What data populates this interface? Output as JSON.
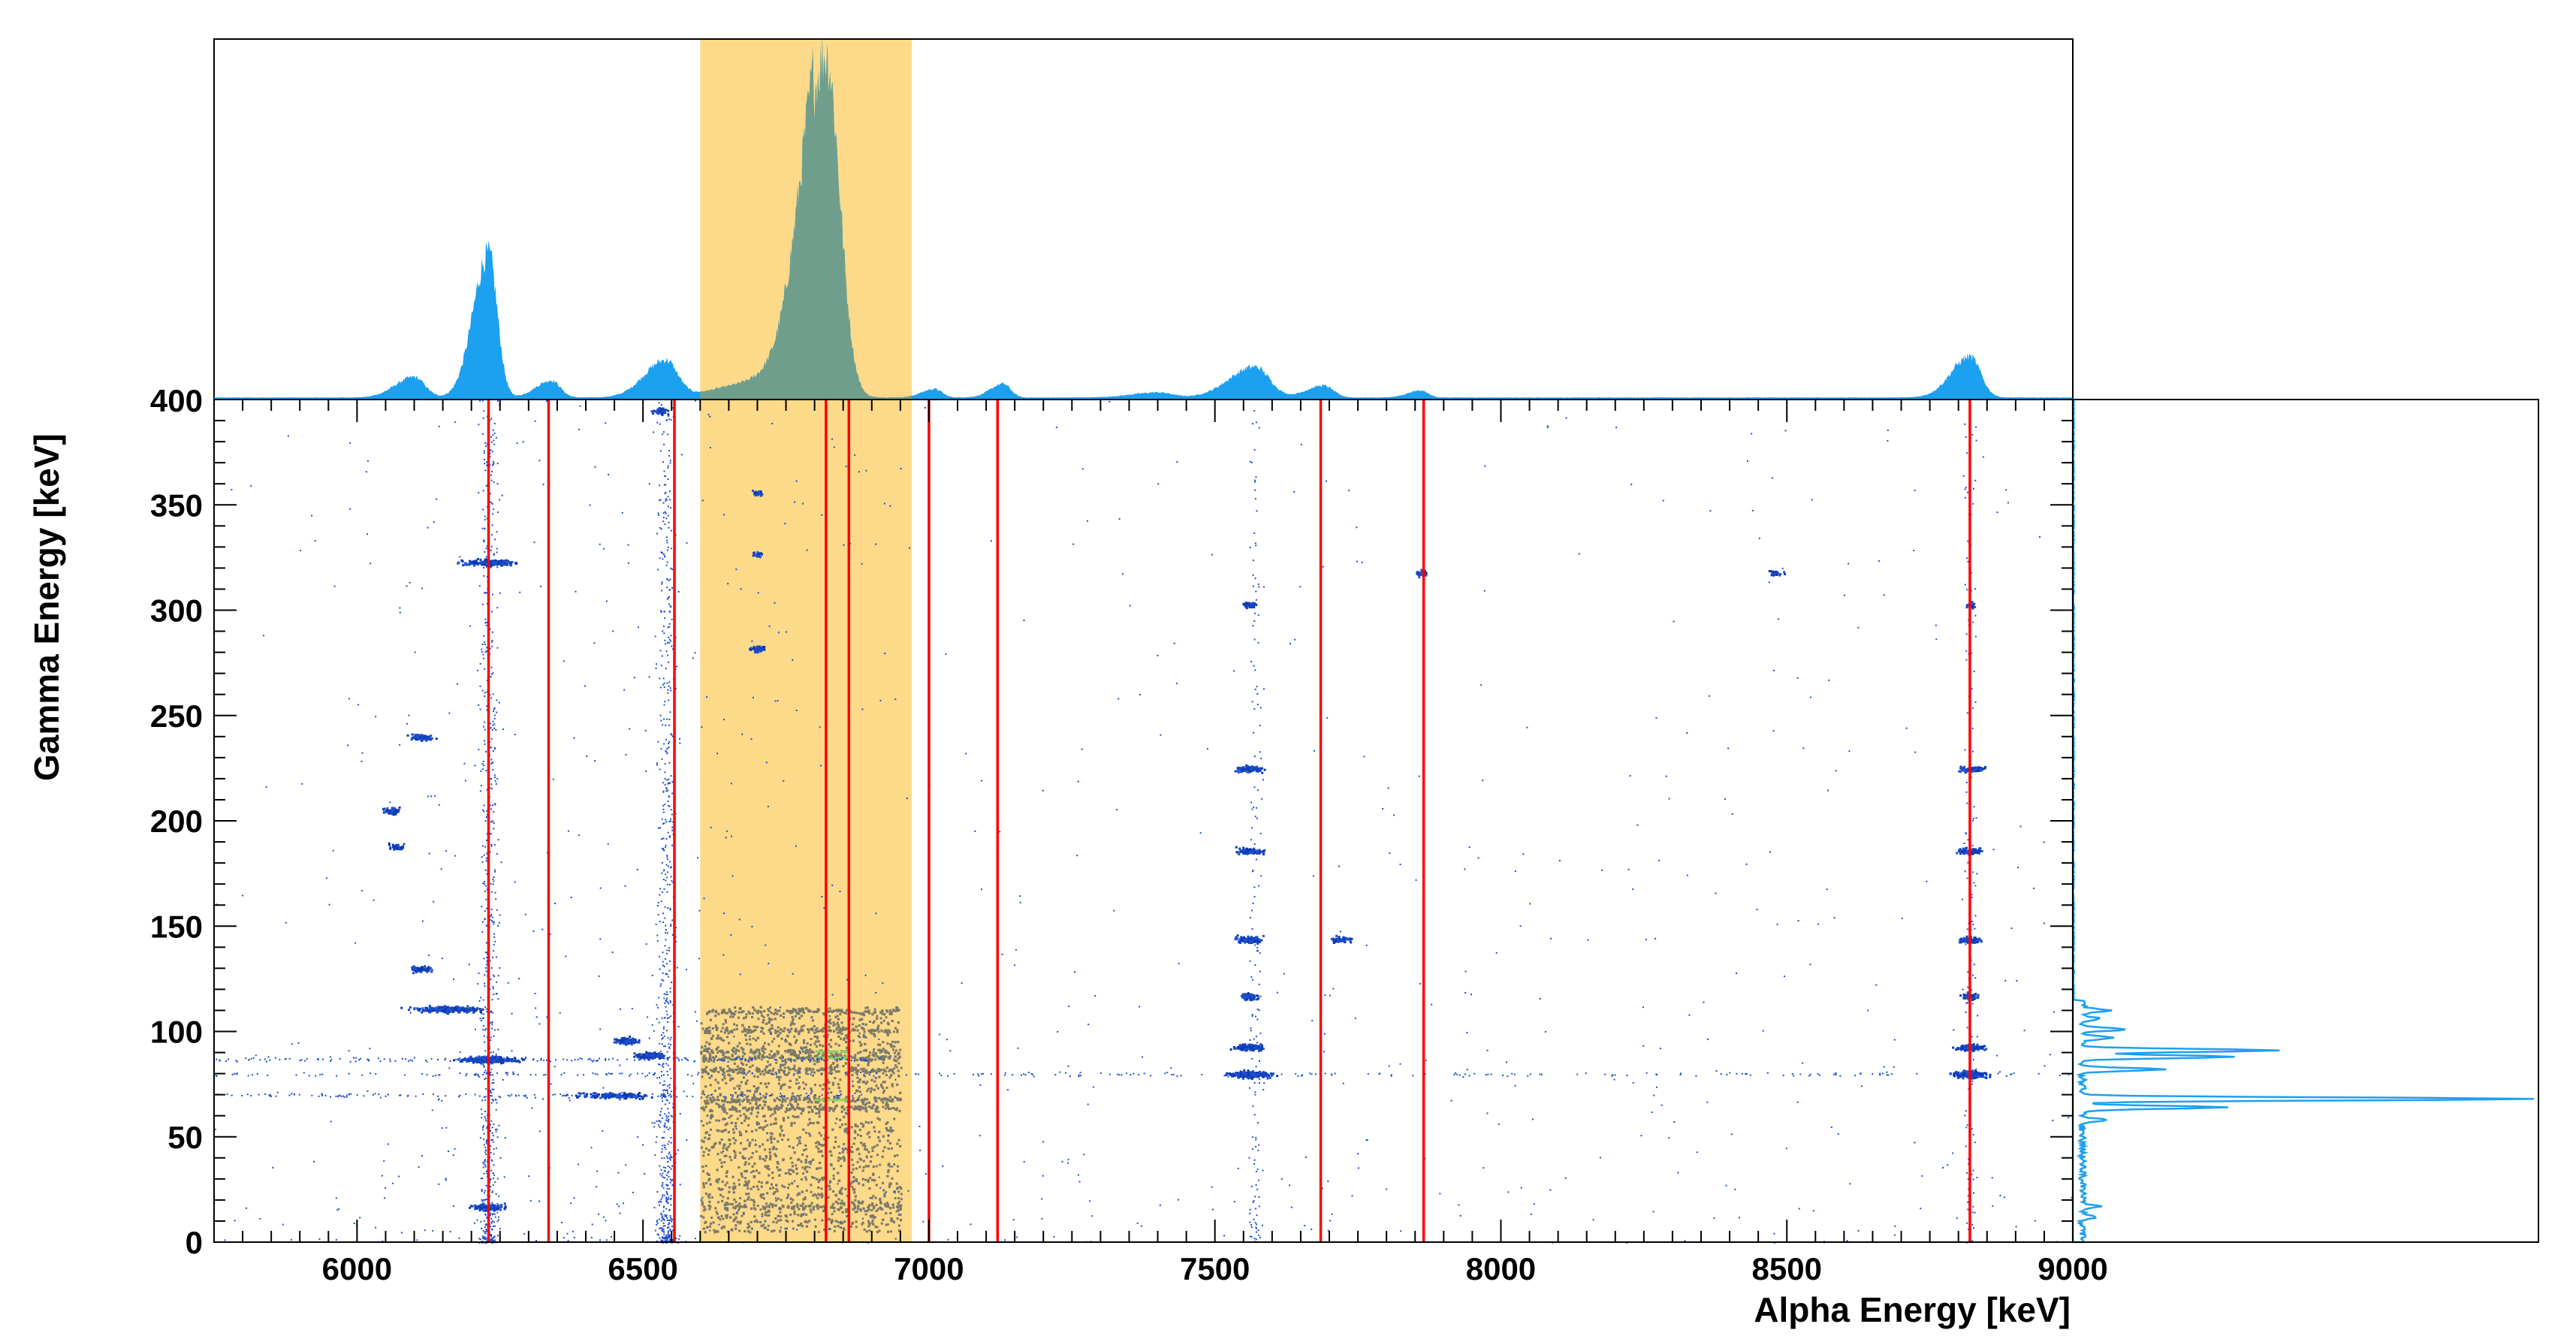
{
  "chart_data": {
    "type": "heatmap",
    "title": "",
    "xlabel": "Alpha Energy [keV]",
    "ylabel": "Gamma Energy [keV]",
    "xlim": [
      5750,
      9000
    ],
    "ylim": [
      0,
      400
    ],
    "x_ticks": [
      6000,
      6500,
      7000,
      7500,
      8000,
      8500,
      9000
    ],
    "y_ticks": [
      0,
      50,
      100,
      150,
      200,
      250,
      300,
      350,
      400
    ],
    "projection_top": {
      "type": "histogram",
      "axis": "alpha",
      "color": "#1ca0f0",
      "label_shown": "400",
      "peaks": [
        {
          "x": 6100,
          "rel": 0.06
        },
        {
          "x": 6230,
          "rel": 0.42
        },
        {
          "x": 6340,
          "rel": 0.05
        },
        {
          "x": 6540,
          "rel": 0.11
        },
        {
          "x": 6820,
          "rel": 1.0
        },
        {
          "x": 7010,
          "rel": 0.025
        },
        {
          "x": 7130,
          "rel": 0.04
        },
        {
          "x": 7400,
          "rel": 0.015
        },
        {
          "x": 7570,
          "rel": 0.09
        },
        {
          "x": 7690,
          "rel": 0.035
        },
        {
          "x": 7860,
          "rel": 0.02
        },
        {
          "x": 8820,
          "rel": 0.12
        }
      ]
    },
    "projection_right": {
      "type": "histogram",
      "axis": "gamma",
      "color": "#1ca0f0",
      "peaks": [
        {
          "y": 12,
          "rel": 0.03
        },
        {
          "y": 17,
          "rel": 0.04
        },
        {
          "y": 58,
          "rel": 0.05
        },
        {
          "y": 64,
          "rel": 0.32
        },
        {
          "y": 68,
          "rel": 1.0
        },
        {
          "y": 82,
          "rel": 0.18
        },
        {
          "y": 88,
          "rel": 0.34
        },
        {
          "y": 91,
          "rel": 0.43
        },
        {
          "y": 97,
          "rel": 0.07
        },
        {
          "y": 101,
          "rel": 0.1
        },
        {
          "y": 106,
          "rel": 0.04
        },
        {
          "y": 110,
          "rel": 0.06
        }
      ]
    },
    "highlight_band": {
      "x": [
        6600,
        6970
      ],
      "color": "#fdd98a"
    },
    "gate_lines": {
      "color": "#ff0000",
      "x": [
        6230,
        6335,
        6555,
        6820,
        6860,
        7000,
        7120,
        7685,
        7865,
        8820
      ]
    },
    "clusters": [
      {
        "x": 6230,
        "y": 323,
        "w": 80,
        "n": 180
      },
      {
        "x": 6110,
        "y": 240,
        "w": 30,
        "n": 90
      },
      {
        "x": 6060,
        "y": 205,
        "w": 25,
        "n": 60
      },
      {
        "x": 6070,
        "y": 188,
        "w": 25,
        "n": 40
      },
      {
        "x": 6110,
        "y": 130,
        "w": 35,
        "n": 80
      },
      {
        "x": 6160,
        "y": 111,
        "w": 100,
        "n": 260
      },
      {
        "x": 6230,
        "y": 87,
        "w": 90,
        "n": 260
      },
      {
        "x": 6450,
        "y": 70,
        "w": 120,
        "n": 140
      },
      {
        "x": 6230,
        "y": 17,
        "w": 50,
        "n": 120
      },
      {
        "x": 6700,
        "y": 282,
        "w": 25,
        "n": 40
      },
      {
        "x": 6700,
        "y": 327,
        "w": 20,
        "n": 20
      },
      {
        "x": 6700,
        "y": 356,
        "w": 20,
        "n": 20
      },
      {
        "x": 6530,
        "y": 395,
        "w": 20,
        "n": 60
      },
      {
        "x": 6510,
        "y": 89,
        "w": 45,
        "n": 160
      },
      {
        "x": 6470,
        "y": 96,
        "w": 40,
        "n": 100
      },
      {
        "x": 7560,
        "y": 303,
        "w": 20,
        "n": 40
      },
      {
        "x": 7560,
        "y": 225,
        "w": 40,
        "n": 120
      },
      {
        "x": 7560,
        "y": 186,
        "w": 35,
        "n": 100
      },
      {
        "x": 7560,
        "y": 144,
        "w": 40,
        "n": 100
      },
      {
        "x": 7560,
        "y": 117,
        "w": 25,
        "n": 60
      },
      {
        "x": 7560,
        "y": 93,
        "w": 40,
        "n": 160
      },
      {
        "x": 7560,
        "y": 80,
        "w": 70,
        "n": 260
      },
      {
        "x": 7720,
        "y": 144,
        "w": 30,
        "n": 60
      },
      {
        "x": 7860,
        "y": 318,
        "w": 20,
        "n": 30
      },
      {
        "x": 8480,
        "y": 318,
        "w": 25,
        "n": 30
      },
      {
        "x": 8820,
        "y": 225,
        "w": 35,
        "n": 80
      },
      {
        "x": 8820,
        "y": 186,
        "w": 35,
        "n": 80
      },
      {
        "x": 8820,
        "y": 144,
        "w": 35,
        "n": 80
      },
      {
        "x": 8820,
        "y": 117,
        "w": 25,
        "n": 50
      },
      {
        "x": 8820,
        "y": 93,
        "w": 40,
        "n": 140
      },
      {
        "x": 8820,
        "y": 80,
        "w": 50,
        "n": 220
      },
      {
        "x": 8820,
        "y": 303,
        "w": 15,
        "n": 25
      }
    ],
    "bands": [
      {
        "y": 80,
        "x": [
          5750,
          9000
        ],
        "n": 260
      },
      {
        "y": 87,
        "x": [
          5750,
          6900
        ],
        "n": 200
      },
      {
        "y": 70,
        "x": [
          5750,
          6900
        ],
        "n": 160
      }
    ],
    "dense_region": {
      "x": [
        6600,
        6950
      ],
      "y": [
        5,
        112
      ],
      "color": "#808070"
    },
    "colors": {
      "point": "#1f4fd0",
      "dense_point": "#0b3bb0",
      "gray_point": "#7a7a6a",
      "hot_point": "#8fcf60",
      "histogram_fill": "#1ca0f0",
      "overlap_fill": "#6f9f8c",
      "frame": "#000000"
    }
  }
}
